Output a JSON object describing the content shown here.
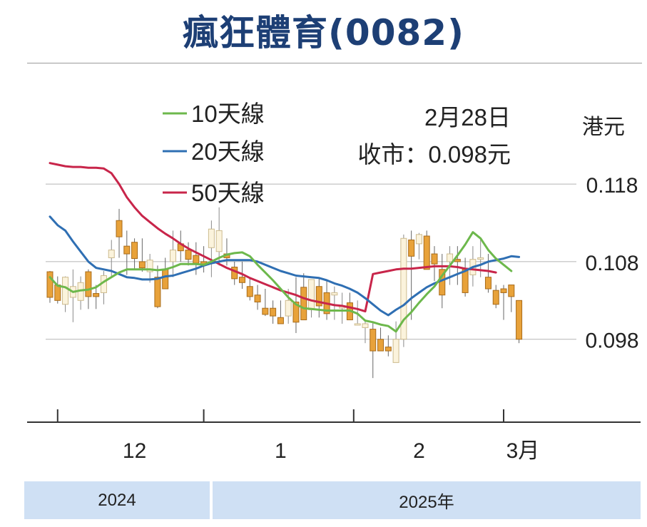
{
  "title": "瘋狂體育(0082)",
  "legend": [
    "10天線",
    "20天線",
    "50天線"
  ],
  "annotation": {
    "date": "2月28日",
    "close": "收市：0.098元"
  },
  "currency_label": "港元",
  "years": [
    "2024",
    "2025年"
  ],
  "colors": {
    "title": "#1d3f75",
    "ma10": "#6db84c",
    "ma20": "#2f6fb3",
    "ma50": "#c8254a",
    "candle_up_fill": "#fbf3dc",
    "candle_up_stroke": "#cdbb8e",
    "candle_down_fill": "#e8a23a",
    "candle_down_stroke": "#a86b1a",
    "year_band": "#cfe0f4",
    "grid": "#b5b5b5"
  },
  "chart_data": {
    "type": "candlestick",
    "title": "瘋狂體育(0082)",
    "ylabel": "港元",
    "ylim": [
      0.0875,
      0.1215
    ],
    "yticks": [
      0.098,
      0.108,
      0.118
    ],
    "x_month_labels": [
      {
        "label": "12",
        "index": 11
      },
      {
        "label": "1",
        "index": 30
      },
      {
        "label": "2",
        "index": 48
      },
      {
        "label": "3月",
        "index": 61.5
      }
    ],
    "x_separators": [
      1,
      20,
      39.5,
      59
    ],
    "candles": [
      [
        0.1067,
        0.1068,
        0.1027,
        0.1034
      ],
      [
        0.105,
        0.1061,
        0.1026,
        0.103
      ],
      [
        0.1025,
        0.1061,
        0.1015,
        0.106
      ],
      [
        0.1034,
        0.107,
        0.1002,
        0.1048
      ],
      [
        0.103,
        0.1061,
        0.1018,
        0.1053
      ],
      [
        0.1067,
        0.107,
        0.1019,
        0.1035
      ],
      [
        0.1039,
        0.105,
        0.1019,
        0.1035
      ],
      [
        0.104,
        0.1068,
        0.1025,
        0.1062
      ],
      [
        0.1085,
        0.1108,
        0.106,
        0.1095
      ],
      [
        0.1133,
        0.1148,
        0.1085,
        0.1112
      ],
      [
        0.11,
        0.112,
        0.1063,
        0.109
      ],
      [
        0.1105,
        0.111,
        0.107,
        0.1084
      ],
      [
        0.108,
        0.111,
        0.1067,
        0.1072
      ],
      [
        0.1067,
        0.109,
        0.1053,
        0.1082
      ],
      [
        0.106,
        0.1075,
        0.102,
        0.1022
      ],
      [
        0.107,
        0.1085,
        0.1045,
        0.1045
      ],
      [
        0.108,
        0.112,
        0.106,
        0.1095
      ],
      [
        0.1103,
        0.112,
        0.108,
        0.1094
      ],
      [
        0.1095,
        0.1105,
        0.1075,
        0.1083
      ],
      [
        0.1088,
        0.1105,
        0.1063,
        0.1078
      ],
      [
        0.108,
        0.11,
        0.1066,
        0.1077
      ],
      [
        0.1098,
        0.1133,
        0.106,
        0.1122
      ],
      [
        0.1093,
        0.115,
        0.1075,
        0.112
      ],
      [
        0.109,
        0.111,
        0.1075,
        0.1085
      ],
      [
        0.1073,
        0.108,
        0.105,
        0.1058
      ],
      [
        0.106,
        0.108,
        0.1045,
        0.1053
      ],
      [
        0.1048,
        0.106,
        0.103,
        0.1035
      ],
      [
        0.1037,
        0.105,
        0.1018,
        0.1028
      ],
      [
        0.102,
        0.1045,
        0.101,
        0.1012
      ],
      [
        0.102,
        0.103,
        0.1,
        0.101
      ],
      [
        0.1008,
        0.103,
        0.1,
        0.1
      ],
      [
        0.101,
        0.1045,
        0.1,
        0.103
      ],
      [
        0.1028,
        0.106,
        0.0988,
        0.1002
      ],
      [
        0.1047,
        0.1065,
        0.1005,
        0.1005
      ],
      [
        0.1018,
        0.1057,
        0.1008,
        0.1057
      ],
      [
        0.1048,
        0.1058,
        0.1008,
        0.1023
      ],
      [
        0.104,
        0.1055,
        0.1005,
        0.1013
      ],
      [
        0.1037,
        0.1048,
        0.1005,
        0.104
      ],
      [
        0.102,
        0.104,
        0.1,
        0.1022
      ],
      [
        0.1027,
        0.104,
        0.1005,
        0.1005
      ],
      [
        0.1,
        0.103,
        0.1,
        0.1
      ],
      [
        0.0995,
        0.1005,
        0.0975,
        0.1
      ],
      [
        0.0993,
        0.1003,
        0.093,
        0.0965
      ],
      [
        0.098,
        0.0995,
        0.0965,
        0.0965
      ],
      [
        0.097,
        0.0985,
        0.0958,
        0.0965
      ],
      [
        0.095,
        0.1003,
        0.095,
        0.098
      ],
      [
        0.098,
        0.1115,
        0.097,
        0.111
      ],
      [
        0.1108,
        0.112,
        0.1005,
        0.1087
      ],
      [
        0.1103,
        0.1117,
        0.1083,
        0.1115
      ],
      [
        0.1113,
        0.112,
        0.107,
        0.107
      ],
      [
        0.109,
        0.11,
        0.1055,
        0.1077
      ],
      [
        0.107,
        0.109,
        0.102,
        0.1037
      ],
      [
        0.108,
        0.11,
        0.105,
        0.109
      ],
      [
        0.1083,
        0.11,
        0.105,
        0.108
      ],
      [
        0.107,
        0.1085,
        0.1035,
        0.104
      ],
      [
        0.1063,
        0.11,
        0.1048,
        0.1083
      ],
      [
        0.1083,
        0.111,
        0.106,
        0.1085
      ],
      [
        0.106,
        0.109,
        0.104,
        0.1045
      ],
      [
        0.1043,
        0.105,
        0.102,
        0.1025
      ],
      [
        0.1045,
        0.105,
        0.1005,
        0.104
      ],
      [
        0.105,
        0.105,
        0.1015,
        0.1035
      ],
      [
        0.103,
        0.103,
        0.0975,
        0.098
      ]
    ],
    "ma10": [
      [
        0,
        0.106
      ],
      [
        1,
        0.1049
      ],
      [
        2,
        0.1047
      ],
      [
        3,
        0.1041
      ],
      [
        4,
        0.1043
      ],
      [
        5,
        0.1044
      ],
      [
        6,
        0.1047
      ],
      [
        7,
        0.1054
      ],
      [
        8,
        0.106
      ],
      [
        9,
        0.1066
      ],
      [
        10,
        0.107
      ],
      [
        11,
        0.107
      ],
      [
        12,
        0.107
      ],
      [
        13,
        0.107
      ],
      [
        14,
        0.1069
      ],
      [
        15,
        0.107
      ],
      [
        16,
        0.1073
      ],
      [
        17,
        0.1077
      ],
      [
        18,
        0.1077
      ],
      [
        19,
        0.1077
      ],
      [
        20,
        0.1076
      ],
      [
        21,
        0.108
      ],
      [
        22,
        0.1085
      ],
      [
        23,
        0.1089
      ],
      [
        24,
        0.1091
      ],
      [
        25,
        0.1092
      ],
      [
        26,
        0.1087
      ],
      [
        27,
        0.1076
      ],
      [
        28,
        0.1066
      ],
      [
        29,
        0.1056
      ],
      [
        30,
        0.1045
      ],
      [
        31,
        0.1034
      ],
      [
        32,
        0.1025
      ],
      [
        33,
        0.102
      ],
      [
        34,
        0.1019
      ],
      [
        35,
        0.1018
      ],
      [
        36,
        0.1017
      ],
      [
        37,
        0.1017
      ],
      [
        38,
        0.1017
      ],
      [
        39,
        0.1017
      ],
      [
        40,
        0.1013
      ],
      [
        41,
        0.1004
      ],
      [
        42,
        0.1002
      ],
      [
        43,
        0.0999
      ],
      [
        44,
        0.0997
      ],
      [
        45,
        0.099
      ],
      [
        46,
        0.1005
      ],
      [
        47,
        0.1015
      ],
      [
        48,
        0.1027
      ],
      [
        49,
        0.1038
      ],
      [
        50,
        0.1048
      ],
      [
        51,
        0.1062
      ],
      [
        52,
        0.1075
      ],
      [
        53,
        0.1088
      ],
      [
        54,
        0.1102
      ],
      [
        55,
        0.1118
      ],
      [
        56,
        0.111
      ],
      [
        57,
        0.1095
      ],
      [
        58,
        0.1084
      ],
      [
        59,
        0.1076
      ],
      [
        60,
        0.1068
      ]
    ],
    "ma20": [
      [
        0,
        0.1138
      ],
      [
        1,
        0.1127
      ],
      [
        2,
        0.112
      ],
      [
        3,
        0.1106
      ],
      [
        4,
        0.1093
      ],
      [
        5,
        0.108
      ],
      [
        6,
        0.1072
      ],
      [
        7,
        0.107
      ],
      [
        8,
        0.1068
      ],
      [
        9,
        0.1064
      ],
      [
        10,
        0.106
      ],
      [
        11,
        0.1059
      ],
      [
        12,
        0.1057
      ],
      [
        13,
        0.1057
      ],
      [
        14,
        0.1058
      ],
      [
        15,
        0.1061
      ],
      [
        16,
        0.1062
      ],
      [
        17,
        0.1065
      ],
      [
        18,
        0.1068
      ],
      [
        19,
        0.1071
      ],
      [
        20,
        0.1075
      ],
      [
        21,
        0.1078
      ],
      [
        22,
        0.108
      ],
      [
        23,
        0.1082
      ],
      [
        24,
        0.1082
      ],
      [
        25,
        0.1082
      ],
      [
        26,
        0.1082
      ],
      [
        27,
        0.108
      ],
      [
        28,
        0.1076
      ],
      [
        29,
        0.1072
      ],
      [
        30,
        0.1068
      ],
      [
        31,
        0.1065
      ],
      [
        32,
        0.1062
      ],
      [
        33,
        0.1061
      ],
      [
        34,
        0.106
      ],
      [
        35,
        0.1059
      ],
      [
        36,
        0.1056
      ],
      [
        37,
        0.1052
      ],
      [
        38,
        0.1049
      ],
      [
        39,
        0.1045
      ],
      [
        40,
        0.104
      ],
      [
        41,
        0.1033
      ],
      [
        42,
        0.1025
      ],
      [
        43,
        0.1017
      ],
      [
        44,
        0.1011
      ],
      [
        45,
        0.1018
      ],
      [
        46,
        0.1024
      ],
      [
        47,
        0.1033
      ],
      [
        48,
        0.104
      ],
      [
        49,
        0.1047
      ],
      [
        50,
        0.1052
      ],
      [
        51,
        0.1056
      ],
      [
        52,
        0.106
      ],
      [
        53,
        0.1064
      ],
      [
        54,
        0.1068
      ],
      [
        55,
        0.1073
      ],
      [
        56,
        0.1076
      ],
      [
        57,
        0.108
      ],
      [
        58,
        0.1082
      ],
      [
        59,
        0.1084
      ],
      [
        60,
        0.1087
      ],
      [
        61,
        0.1086
      ]
    ],
    "ma50": [
      [
        0,
        0.1207
      ],
      [
        1,
        0.1205
      ],
      [
        2,
        0.1203
      ],
      [
        3,
        0.1202
      ],
      [
        4,
        0.1202
      ],
      [
        5,
        0.1201
      ],
      [
        6,
        0.1201
      ],
      [
        7,
        0.12
      ],
      [
        8,
        0.1194
      ],
      [
        9,
        0.118
      ],
      [
        10,
        0.1163
      ],
      [
        11,
        0.115
      ],
      [
        12,
        0.1139
      ],
      [
        13,
        0.1131
      ],
      [
        14,
        0.1123
      ],
      [
        15,
        0.1116
      ],
      [
        16,
        0.111
      ],
      [
        17,
        0.1103
      ],
      [
        18,
        0.1097
      ],
      [
        19,
        0.1092
      ],
      [
        20,
        0.1087
      ],
      [
        21,
        0.1082
      ],
      [
        22,
        0.1077
      ],
      [
        23,
        0.1072
      ],
      [
        24,
        0.1068
      ],
      [
        25,
        0.1064
      ],
      [
        26,
        0.1059
      ],
      [
        27,
        0.1055
      ],
      [
        28,
        0.1051
      ],
      [
        29,
        0.1047
      ],
      [
        30,
        0.1043
      ],
      [
        31,
        0.104
      ],
      [
        32,
        0.1037
      ],
      [
        33,
        0.1033
      ],
      [
        34,
        0.103
      ],
      [
        35,
        0.1028
      ],
      [
        36,
        0.1026
      ],
      [
        37,
        0.1024
      ],
      [
        38,
        0.1023
      ],
      [
        39,
        0.1021
      ],
      [
        40,
        0.1019
      ],
      [
        41,
        0.1016
      ],
      [
        42,
        0.1064
      ],
      [
        43,
        0.1066
      ],
      [
        44,
        0.1068
      ],
      [
        45,
        0.107
      ],
      [
        46,
        0.1071
      ],
      [
        47,
        0.1071
      ],
      [
        48,
        0.1072
      ],
      [
        49,
        0.1073
      ],
      [
        50,
        0.1074
      ],
      [
        51,
        0.1074
      ],
      [
        52,
        0.1074
      ],
      [
        53,
        0.1073
      ],
      [
        54,
        0.1071
      ],
      [
        55,
        0.107
      ],
      [
        56,
        0.1069
      ],
      [
        57,
        0.1068
      ],
      [
        58,
        0.1066
      ]
    ]
  }
}
